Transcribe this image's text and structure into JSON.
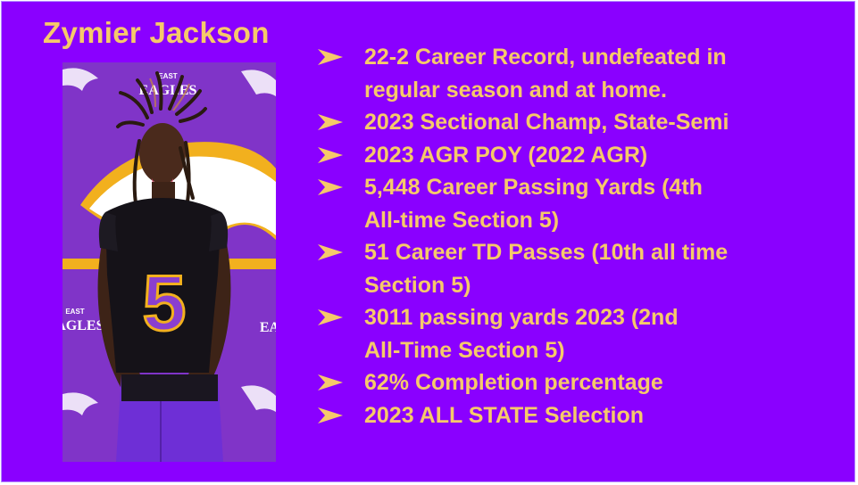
{
  "player_name": "Zymier Jackson",
  "photo": {
    "backdrop_text_top": "EAST",
    "backdrop_text_main": "EAGLES",
    "backdrop_text_left_top": "EAST",
    "backdrop_text_left_main": "EAGLES",
    "backdrop_text_right": "EA",
    "jersey_number": "5"
  },
  "bullet_icon": "arrowhead-bullet-icon",
  "achievements": [
    {
      "lines": [
        "22-2 Career Record, undefeated in",
        "regular season and at home."
      ]
    },
    {
      "lines": [
        "2023 Sectional Champ, State-Semi"
      ]
    },
    {
      "lines": [
        "2023 AGR POY (2022 AGR)"
      ]
    },
    {
      "lines": [
        "5,448 Career Passing Yards (4th",
        "All-time Section 5)"
      ]
    },
    {
      "lines": [
        "51 Career TD Passes (10th all time",
        "Section 5)"
      ]
    },
    {
      "lines": [
        "3011 passing yards 2023 (2nd",
        "All-Time Section 5)"
      ]
    },
    {
      "lines": [
        "62% Completion percentage"
      ]
    },
    {
      "lines": [
        "2023 ALL STATE Selection"
      ]
    }
  ],
  "colors": {
    "background": "#8a00ff",
    "text": "#f6c96a",
    "backdrop_purple": "#7b2fc4",
    "eagle_gold": "#f2b01e"
  }
}
